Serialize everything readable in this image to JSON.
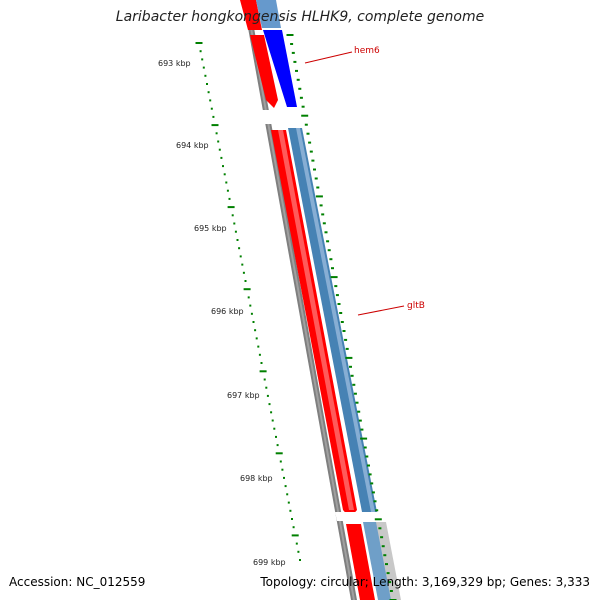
{
  "title": "Laribacter hongkongensis HLHK9, complete genome",
  "footer": {
    "accession": "Accession: NC_012559",
    "summary": "Topology: circular; Length: 3,169,329 bp; Genes: 3,333"
  },
  "colors": {
    "forward_cds": "#ff0000",
    "reverse_cds": "#4682b4",
    "reverse_highlight": "#0000ff",
    "backbone": "#808080",
    "ticks": "#008000",
    "label_line": "#cc0000"
  },
  "ticks": [
    "693 kbp",
    "694 kbp",
    "695 kbp",
    "696 kbp",
    "697 kbp",
    "698 kbp",
    "699 kbp"
  ],
  "genes": [
    {
      "name": "hem6"
    },
    {
      "name": "gltB"
    }
  ]
}
